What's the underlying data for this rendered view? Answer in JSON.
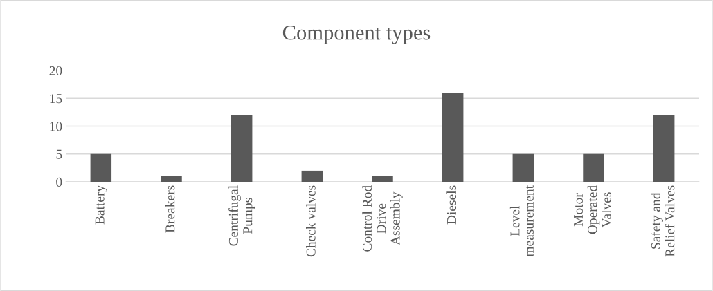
{
  "chart_data": {
    "type": "bar",
    "title": "Component types",
    "categories": [
      "Battery",
      "Breakers",
      "Centrifugal\nPumps",
      "Check valves",
      "Control Rod\nDrive\nAssembly",
      "Diesels",
      "Level\nmeasurement",
      "Motor\nOperated\nValves",
      "Safety and\nRelief Valves"
    ],
    "values": [
      5,
      1,
      12,
      2,
      1,
      16,
      5,
      5,
      12
    ],
    "color": "#595959",
    "ylim": [
      0,
      20
    ],
    "yticks": [
      0,
      5,
      10,
      15,
      20
    ],
    "grid": "y",
    "legend": false
  }
}
